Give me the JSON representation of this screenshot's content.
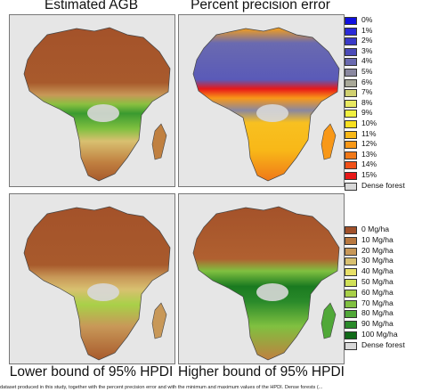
{
  "panels": [
    {
      "title": "Estimated AGB"
    },
    {
      "title": "Percent precision error"
    },
    {
      "title": "Lower bound of 95% HPDI"
    },
    {
      "title": "Higher bound of 95% HPDI"
    }
  ],
  "legend_error": [
    {
      "label": "0%",
      "color": "#1010e0"
    },
    {
      "label": "1%",
      "color": "#2a2ad8"
    },
    {
      "label": "2%",
      "color": "#3a3ac8"
    },
    {
      "label": "3%",
      "color": "#4a4ab8"
    },
    {
      "label": "4%",
      "color": "#6a6ab0"
    },
    {
      "label": "5%",
      "color": "#8a88a0"
    },
    {
      "label": "6%",
      "color": "#a8a898"
    },
    {
      "label": "7%",
      "color": "#d0d070"
    },
    {
      "label": "8%",
      "color": "#e8e860"
    },
    {
      "label": "9%",
      "color": "#f0f040"
    },
    {
      "label": "10%",
      "color": "#f8e020"
    },
    {
      "label": "11%",
      "color": "#f8b818"
    },
    {
      "label": "12%",
      "color": "#f89818"
    },
    {
      "label": "13%",
      "color": "#f07818"
    },
    {
      "label": "14%",
      "color": "#f05018"
    },
    {
      "label": "15%",
      "color": "#e81818"
    },
    {
      "label": "Dense forest",
      "color": "#d8d8d8"
    }
  ],
  "legend_agb": [
    {
      "label": "0 Mg/ha",
      "color": "#a0502a"
    },
    {
      "label": "10 Mg/ha",
      "color": "#b87840"
    },
    {
      "label": "20 Mg/ha",
      "color": "#c89858"
    },
    {
      "label": "30 Mg/ha",
      "color": "#d8c070"
    },
    {
      "label": "40 Mg/ha",
      "color": "#e8e068"
    },
    {
      "label": "50 Mg/ha",
      "color": "#d0e058"
    },
    {
      "label": "60 Mg/ha",
      "color": "#a8d048"
    },
    {
      "label": "70 Mg/ha",
      "color": "#80c040"
    },
    {
      "label": "80 Mg/ha",
      "color": "#50a838"
    },
    {
      "label": "90 Mg/ha",
      "color": "#2a8a2a"
    },
    {
      "label": "100 Mg/ha",
      "color": "#106a18"
    },
    {
      "label": "Dense forest",
      "color": "#d8d8d8"
    }
  ],
  "caption": "dataset produced in this study, together with the percent precision error and with the minimum and maximum values of the HPDI. Dense forests (..."
}
